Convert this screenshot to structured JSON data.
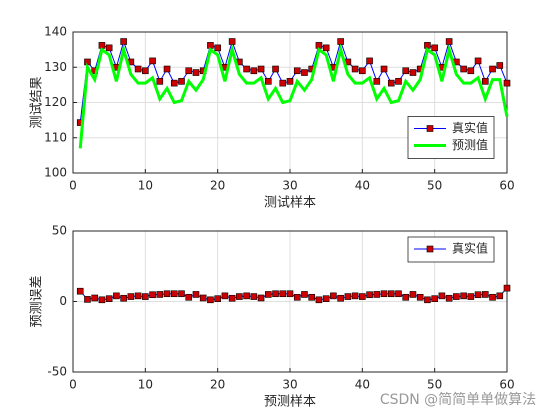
{
  "chart_data": [
    {
      "type": "line",
      "xlabel": "测试样本",
      "ylabel": "测试结果",
      "x": [
        1,
        2,
        3,
        4,
        5,
        6,
        7,
        8,
        9,
        10,
        11,
        12,
        13,
        14,
        15,
        16,
        17,
        18,
        19,
        20,
        21,
        22,
        23,
        24,
        25,
        26,
        27,
        28,
        29,
        30,
        31,
        32,
        33,
        34,
        35,
        36,
        37,
        38,
        39,
        40,
        41,
        42,
        43,
        44,
        45,
        46,
        47,
        48,
        49,
        50,
        51,
        52,
        53,
        54,
        55,
        56,
        57,
        58,
        59,
        60
      ],
      "xlim": [
        0,
        60
      ],
      "xticks": [
        0,
        10,
        20,
        30,
        40,
        50,
        60
      ],
      "ylim": [
        100,
        140
      ],
      "yticks": [
        100,
        110,
        120,
        130,
        140
      ],
      "grid": true,
      "legend": "east",
      "series": [
        {
          "name": "真实值",
          "color": "#0000ff",
          "marker_color": "#cc0000",
          "marker": "square",
          "values": [
            114.3,
            131.5,
            129,
            136.2,
            135.5,
            130,
            137.3,
            131.5,
            129.5,
            129,
            131.8,
            126,
            129.5,
            125.5,
            126,
            129,
            128.5,
            129,
            136.2,
            135.5,
            130,
            137.3,
            131.5,
            129.5,
            129,
            129.5,
            126,
            129.5,
            125.5,
            126,
            129,
            128.5,
            129.5,
            136.2,
            135.5,
            130,
            137.3,
            131.5,
            129.5,
            129,
            131.8,
            126,
            129.5,
            125.5,
            126,
            129,
            128.5,
            129.5,
            136.2,
            135.5,
            130,
            137.3,
            131.5,
            129.5,
            129,
            131.8,
            126,
            129.5,
            130.5,
            125.5
          ]
        },
        {
          "name": "预测值",
          "color": "#00ff00",
          "width": 3,
          "values": [
            107,
            130,
            126.5,
            135,
            133.5,
            126,
            135,
            128,
            125.5,
            125.5,
            127,
            121,
            124,
            120,
            120.5,
            126,
            123.5,
            126.5,
            135,
            133.5,
            126,
            135,
            128,
            125.5,
            125.5,
            127,
            121,
            124,
            120,
            120.5,
            126,
            123.5,
            126.5,
            135,
            133.5,
            126,
            135,
            128,
            125.5,
            125.5,
            127,
            121,
            124,
            120,
            120.5,
            126,
            123.5,
            126.5,
            135,
            133.5,
            126,
            135,
            128,
            125.5,
            125.5,
            127,
            121,
            126.5,
            126.5,
            116
          ]
        }
      ]
    },
    {
      "type": "line",
      "xlabel": "预测样本",
      "ylabel": "预测误差",
      "x": [
        1,
        2,
        3,
        4,
        5,
        6,
        7,
        8,
        9,
        10,
        11,
        12,
        13,
        14,
        15,
        16,
        17,
        18,
        19,
        20,
        21,
        22,
        23,
        24,
        25,
        26,
        27,
        28,
        29,
        30,
        31,
        32,
        33,
        34,
        35,
        36,
        37,
        38,
        39,
        40,
        41,
        42,
        43,
        44,
        45,
        46,
        47,
        48,
        49,
        50,
        51,
        52,
        53,
        54,
        55,
        56,
        57,
        58,
        59,
        60
      ],
      "xlim": [
        0,
        60
      ],
      "xticks": [
        0,
        10,
        20,
        30,
        40,
        50,
        60
      ],
      "ylim": [
        -50,
        50
      ],
      "yticks": [
        -50,
        0,
        50
      ],
      "grid": true,
      "legend": "northeast",
      "series": [
        {
          "name": "真实值",
          "color": "#0000ff",
          "marker_color": "#cc0000",
          "marker": "square",
          "values": [
            7.3,
            1.5,
            2.5,
            1.2,
            2,
            4,
            2.3,
            3.5,
            4,
            3.5,
            4.8,
            5,
            5.5,
            5.5,
            5.5,
            3,
            5,
            2.5,
            1.2,
            2,
            4,
            2.3,
            3.5,
            4,
            3.5,
            2.5,
            5,
            5.5,
            5.5,
            5.5,
            3,
            5,
            3,
            1.2,
            2,
            4,
            2.3,
            3.5,
            4,
            3.5,
            4.8,
            5,
            5.5,
            5.5,
            5.5,
            3,
            5,
            3,
            1.2,
            2,
            4,
            2.3,
            3.5,
            4,
            3.5,
            4.8,
            5,
            3,
            4,
            9.5
          ]
        }
      ]
    }
  ],
  "watermark": "CSDN @简简单单做算法"
}
